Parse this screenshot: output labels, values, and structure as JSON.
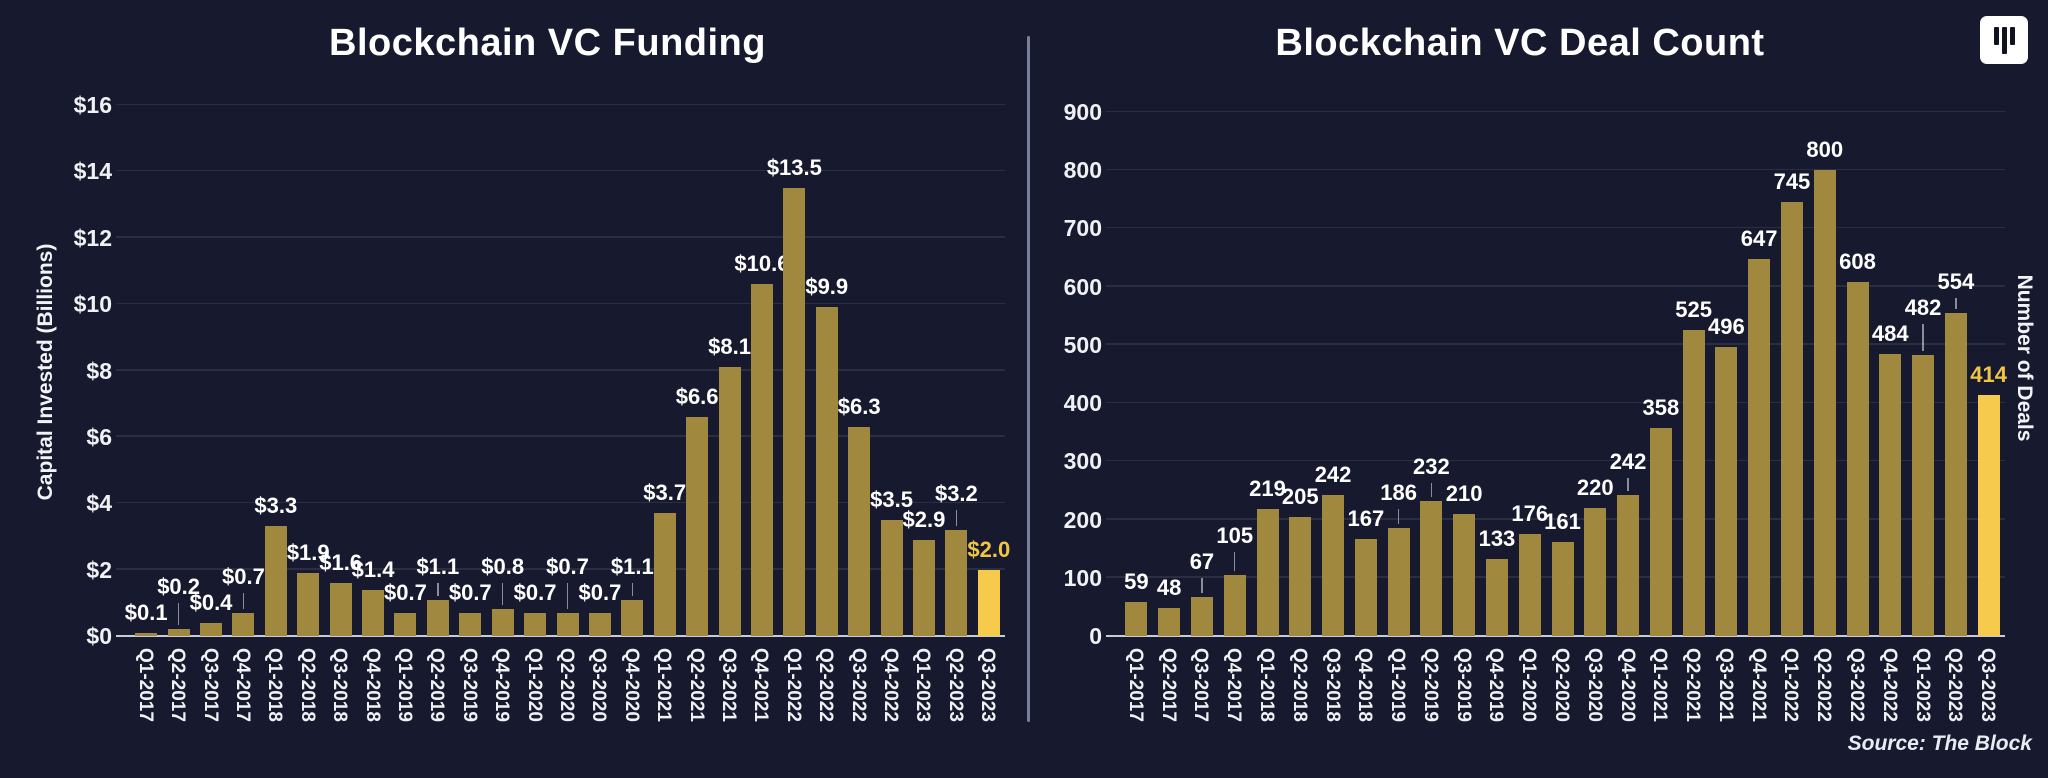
{
  "source_note": "Source: The Block",
  "logo": "the-block-logo",
  "colors": {
    "background": "#171a2e",
    "bar": "#a1883f",
    "bar_highlight": "#f5ca4d",
    "value_label": "#ffffff",
    "value_label_highlight": "#f0c543",
    "axis_text": "#f0f1f5",
    "grid_line": "rgba(255,255,255,0.09)",
    "axis_line": "#c9ccd5",
    "divider": "#79819a",
    "source_text": "#e9ebf2"
  },
  "chart_data": [
    {
      "type": "bar",
      "title": "Blockchain VC Funding",
      "xlabel": "",
      "ylabel": "Capital Invested (Billions)",
      "ylim": [
        0,
        16
      ],
      "grid": true,
      "legend": "none",
      "ytick_values": [
        0,
        2,
        4,
        6,
        8,
        10,
        12,
        14,
        16
      ],
      "ytick_labels": [
        "$0",
        "$2",
        "$4",
        "$6",
        "$8",
        "$10",
        "$12",
        "$14",
        "$16"
      ],
      "categories": [
        "Q1-2017",
        "Q2-2017",
        "Q3-2017",
        "Q4-2017",
        "Q1-2018",
        "Q2-2018",
        "Q3-2018",
        "Q4-2018",
        "Q1-2019",
        "Q2-2019",
        "Q3-2019",
        "Q4-2019",
        "Q1-2020",
        "Q2-2020",
        "Q3-2020",
        "Q4-2020",
        "Q1-2021",
        "Q2-2021",
        "Q3-2021",
        "Q4-2021",
        "Q1-2022",
        "Q2-2022",
        "Q3-2022",
        "Q4-2022",
        "Q1-2023",
        "Q2-2023",
        "Q3-2023"
      ],
      "values": [
        0.1,
        0.2,
        0.4,
        0.7,
        3.3,
        1.9,
        1.6,
        1.4,
        0.7,
        1.1,
        0.7,
        0.8,
        0.7,
        0.7,
        0.7,
        1.1,
        3.7,
        6.6,
        8.1,
        10.6,
        13.5,
        9.9,
        6.3,
        3.5,
        2.9,
        3.2,
        2.0
      ],
      "value_labels": [
        "$0.1",
        "$0.2",
        "$0.4",
        "$0.7",
        "$3.3",
        "$1.9",
        "$1.6",
        "$1.4",
        "$0.7",
        "$1.1",
        "$0.7",
        "$0.8",
        "$0.7",
        "$0.7",
        "$0.7",
        "$1.1",
        "$3.7",
        "$6.6",
        "$8.1",
        "$10.6",
        "$13.5",
        "$9.9",
        "$6.3",
        "$3.5",
        "$2.9",
        "$3.2",
        "$2.0"
      ],
      "highlight_index": 26
    },
    {
      "type": "bar",
      "title": "Blockchain VC Deal Count",
      "xlabel": "",
      "ylabel": "Number of Deals",
      "ylim": [
        0,
        900
      ],
      "grid": true,
      "legend": "none",
      "ytick_values": [
        0,
        100,
        200,
        300,
        400,
        500,
        600,
        700,
        800,
        900
      ],
      "ytick_labels": [
        "0",
        "100",
        "200",
        "300",
        "400",
        "500",
        "600",
        "700",
        "800",
        "900"
      ],
      "categories": [
        "Q1-2017",
        "Q2-2017",
        "Q3-2017",
        "Q4-2017",
        "Q1-2018",
        "Q2-2018",
        "Q3-2018",
        "Q4-2018",
        "Q1-2019",
        "Q2-2019",
        "Q3-2019",
        "Q4-2019",
        "Q1-2020",
        "Q2-2020",
        "Q3-2020",
        "Q4-2020",
        "Q1-2021",
        "Q2-2021",
        "Q3-2021",
        "Q4-2021",
        "Q1-2022",
        "Q2-2022",
        "Q3-2022",
        "Q4-2022",
        "Q1-2023",
        "Q2-2023",
        "Q3-2023"
      ],
      "values": [
        59,
        48,
        67,
        105,
        219,
        205,
        242,
        167,
        186,
        232,
        210,
        133,
        176,
        161,
        220,
        242,
        358,
        525,
        496,
        647,
        745,
        800,
        608,
        484,
        482,
        554,
        414
      ],
      "value_labels": [
        "59",
        "48",
        "67",
        "105",
        "219",
        "205",
        "242",
        "167",
        "186",
        "232",
        "210",
        "133",
        "176",
        "161",
        "220",
        "242",
        "358",
        "525",
        "496",
        "647",
        "745",
        "800",
        "608",
        "484",
        "482",
        "554",
        "414"
      ],
      "highlight_index": 26
    }
  ]
}
